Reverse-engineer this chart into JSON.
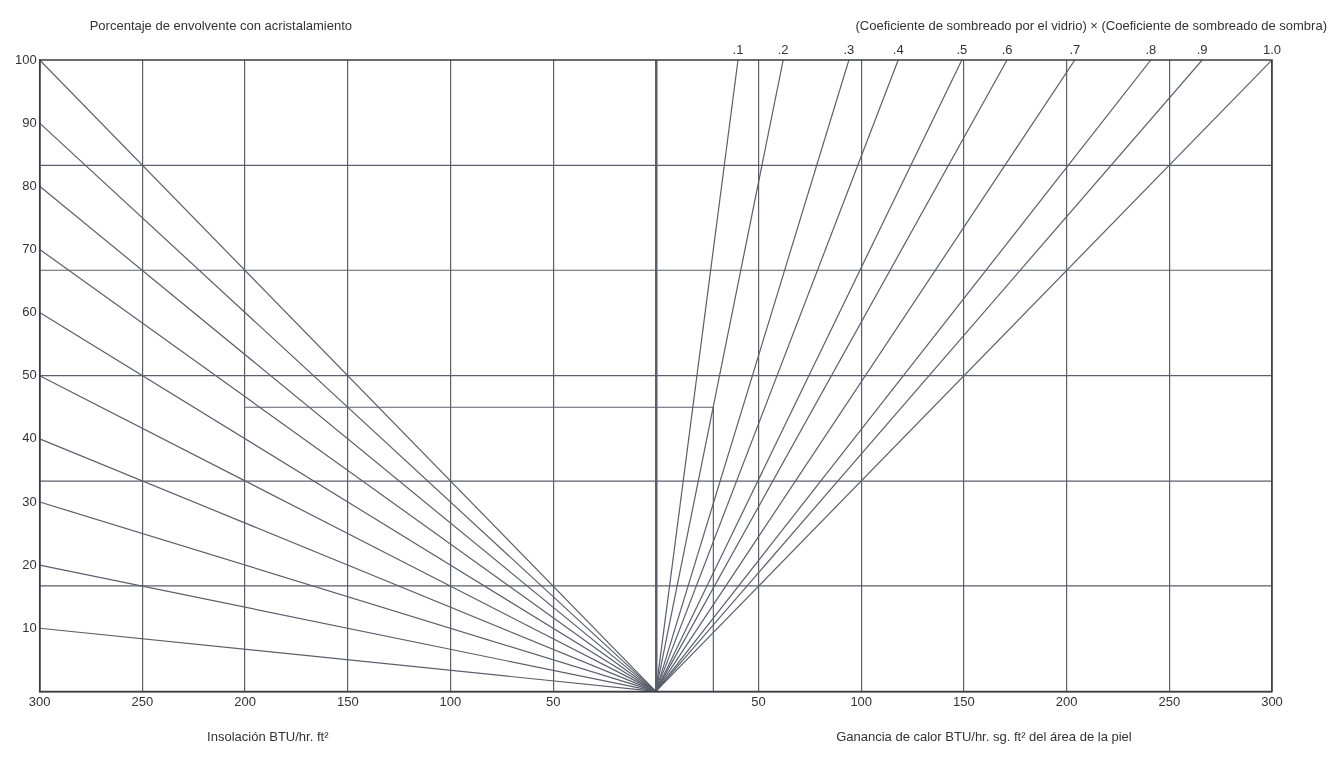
{
  "chart_data": {
    "type": "line",
    "ylabel": "Porcentaje de envolvente con acristalamiento",
    "xlabel": "Insolación BTU/hr. ft²",
    "annotations": [
      "(Coeficiente de sombreado por el vidrio) × (Coeficiente de sombreado de sombra)",
      "Ganancia de calor BTU/hr. sg. ft² del área de la piel"
    ],
    "xlim": [
      -300,
      300
    ],
    "xticks": [
      {
        "value": -300,
        "label": "300"
      },
      {
        "value": -250,
        "label": "250"
      },
      {
        "value": -200,
        "label": "200"
      },
      {
        "value": -150,
        "label": "150"
      },
      {
        "value": -100,
        "label": "100"
      },
      {
        "value": -50,
        "label": "50"
      },
      {
        "value": 0,
        "label": null
      },
      50,
      100,
      150,
      200,
      250,
      300
    ],
    "ylim": [
      0,
      100
    ],
    "yticks": [
      10,
      20,
      30,
      40,
      50,
      60,
      70,
      80,
      90,
      100
    ],
    "grid": "x",
    "marker": "none",
    "line_style": "solid",
    "ref_lines": [
      {
        "axis": "y",
        "value": 16.7,
        "color": "#5a5f6b"
      },
      {
        "axis": "y",
        "value": 33.3,
        "color": "#5a5f6b"
      },
      {
        "axis": "y",
        "value": 50,
        "color": "#5a5f6b"
      },
      {
        "axis": "y",
        "value": 66.7,
        "color": "#5a5f6b"
      },
      {
        "axis": "y",
        "value": 83.3,
        "color": "#5a5f6b"
      }
    ],
    "series": [
      {
        "type": "line",
        "color": "#5a5f6b",
        "x": [
          0,
          -300
        ],
        "values": [
          0,
          10
        ]
      },
      {
        "type": "line",
        "color": "#5a5f6b",
        "x": [
          0,
          -300
        ],
        "values": [
          0,
          20
        ]
      },
      {
        "type": "line",
        "color": "#5a5f6b",
        "x": [
          0,
          -300
        ],
        "values": [
          0,
          30
        ]
      },
      {
        "type": "line",
        "color": "#5a5f6b",
        "x": [
          0,
          -300
        ],
        "values": [
          0,
          40
        ]
      },
      {
        "type": "line",
        "color": "#5a5f6b",
        "x": [
          0,
          -300
        ],
        "values": [
          0,
          50
        ]
      },
      {
        "type": "line",
        "color": "#5a5f6b",
        "x": [
          0,
          -300
        ],
        "values": [
          0,
          60
        ]
      },
      {
        "type": "line",
        "color": "#5a5f6b",
        "x": [
          0,
          -300
        ],
        "values": [
          0,
          70
        ]
      },
      {
        "type": "line",
        "color": "#5a5f6b",
        "x": [
          0,
          -300
        ],
        "values": [
          0,
          80
        ]
      },
      {
        "type": "line",
        "color": "#5a5f6b",
        "x": [
          0,
          -300
        ],
        "values": [
          0,
          90
        ]
      },
      {
        "type": "line",
        "color": "#5a5f6b",
        "x": [
          0,
          -300
        ],
        "values": [
          0,
          100
        ]
      },
      {
        "type": "line",
        "name": ".1",
        "color": "#5a5f6b",
        "x": [
          0,
          40
        ],
        "values": [
          0,
          100
        ]
      },
      {
        "type": "line",
        "name": ".2",
        "color": "#5a5f6b",
        "x": [
          0,
          62
        ],
        "values": [
          0,
          100
        ]
      },
      {
        "type": "line",
        "name": ".3",
        "color": "#5a5f6b",
        "x": [
          0,
          94
        ],
        "values": [
          0,
          100
        ]
      },
      {
        "type": "line",
        "name": ".4",
        "color": "#5a5f6b",
        "x": [
          0,
          118
        ],
        "values": [
          0,
          100
        ]
      },
      {
        "type": "line",
        "name": ".5",
        "color": "#5a5f6b",
        "x": [
          0,
          149
        ],
        "values": [
          0,
          100
        ]
      },
      {
        "type": "line",
        "name": ".6",
        "color": "#5a5f6b",
        "x": [
          0,
          171
        ],
        "values": [
          0,
          100
        ]
      },
      {
        "type": "line",
        "name": ".7",
        "color": "#5a5f6b",
        "x": [
          0,
          204
        ],
        "values": [
          0,
          100
        ]
      },
      {
        "type": "line",
        "name": ".8",
        "color": "#5a5f6b",
        "x": [
          0,
          241
        ],
        "values": [
          0,
          100
        ]
      },
      {
        "type": "line",
        "name": ".9",
        "color": "#5a5f6b",
        "x": [
          0,
          266
        ],
        "values": [
          0,
          100
        ]
      },
      {
        "type": "line",
        "name": "1.0",
        "color": "#5a5f6b",
        "x": [
          0,
          300
        ],
        "values": [
          0,
          100
        ]
      },
      {
        "type": "line",
        "color": "#5a5f6b",
        "x": [
          -200,
          28,
          28
        ],
        "values": [
          45,
          45,
          0
        ]
      }
    ]
  }
}
